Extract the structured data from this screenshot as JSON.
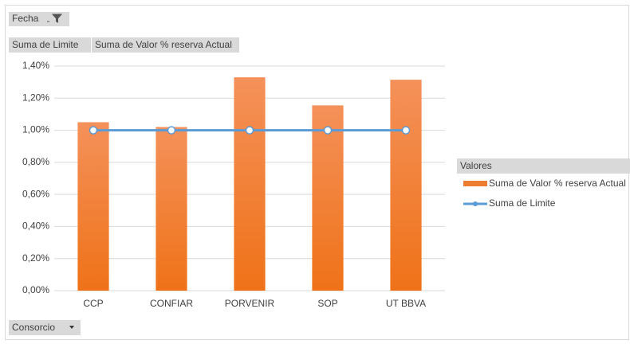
{
  "chart_data": {
    "type": "bar",
    "report_filter": "Fecha",
    "axis_field": "Consorcio",
    "legend_title": "Valores",
    "categories": [
      "CCP",
      "CONFIAR",
      "PORVENIR",
      "SOP",
      "UT BBVA"
    ],
    "series": [
      {
        "name": "Suma de Valor % reserva Actual",
        "type": "bar",
        "color": "#ed7d31",
        "values": [
          1.05,
          1.02,
          1.33,
          1.155,
          1.315
        ]
      },
      {
        "name": "Suma de Limite",
        "type": "line",
        "color": "#5b9bd5",
        "values": [
          1.0,
          1.0,
          1.0,
          1.0,
          1.0
        ]
      }
    ],
    "ylim": [
      0,
      1.4
    ],
    "yticks": [
      {
        "value": 0,
        "label": "0,00%"
      },
      {
        "value": 0.2,
        "label": "0,20%"
      },
      {
        "value": 0.4,
        "label": "0,40%"
      },
      {
        "value": 0.6,
        "label": "0,60%"
      },
      {
        "value": 0.8,
        "label": "0,80%"
      },
      {
        "value": 1.0,
        "label": "1,00%"
      },
      {
        "value": 1.2,
        "label": "1,20%"
      },
      {
        "value": 1.4,
        "label": "1,40%"
      }
    ],
    "grid": true
  }
}
